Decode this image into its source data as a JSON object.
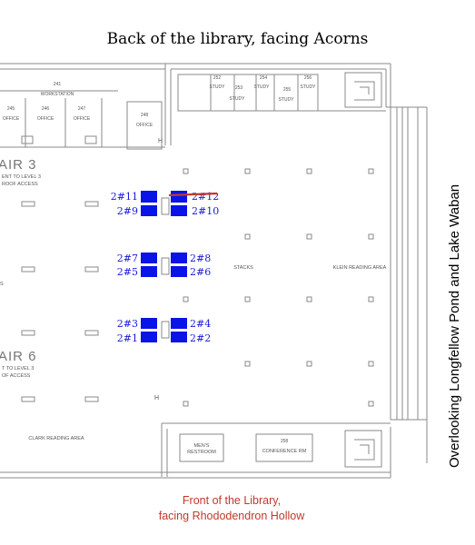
{
  "titles": {
    "top": "Back of the library, facing Acorns",
    "bottom_line1": "Front of the Library,",
    "bottom_line2": "facing Rhododendron Hollow",
    "side": "Overlooking Longfellow Pond and Lake Waban"
  },
  "rooms": {
    "workstation": "WORKSTATION",
    "workstation_num": "241",
    "office_245": "245",
    "office_246": "246",
    "office_247": "247",
    "office_248": "248",
    "office": "OFFICE",
    "study_252": "252",
    "study_253": "253",
    "study_254": "254",
    "study_255": "255",
    "study_256": "256",
    "study": "STUDY",
    "stair3": "AIR 3",
    "stair3_sub1": "ENT TO LEVEL 3",
    "stair3_sub2": "ROOF ACCESS",
    "stair6": "AIR 6",
    "stair6_sub1": "T TO LEVEL 3",
    "stair6_sub2": "OF ACCESS",
    "stacks": "STACKS",
    "klein": "KLEIN READING AREA",
    "clark": "CLARK READING AREA",
    "restroom1": "MEN'S",
    "restroom2": "RESTROOM",
    "conf_num": "258",
    "conference": "CONFERENCE RM",
    "h_marker": "H",
    "edge_s": "S"
  },
  "desks": [
    {
      "label": "2#11",
      "id": "desk-2-11",
      "marked": false
    },
    {
      "label": "2#12",
      "id": "desk-2-12",
      "marked": true
    },
    {
      "label": "2#9",
      "id": "desk-2-9",
      "marked": false
    },
    {
      "label": "2#10",
      "id": "desk-2-10",
      "marked": false
    },
    {
      "label": "2#7",
      "id": "desk-2-7",
      "marked": false
    },
    {
      "label": "2#8",
      "id": "desk-2-8",
      "marked": false
    },
    {
      "label": "2#5",
      "id": "desk-2-5",
      "marked": false
    },
    {
      "label": "2#6",
      "id": "desk-2-6",
      "marked": false
    },
    {
      "label": "2#3",
      "id": "desk-2-3",
      "marked": false
    },
    {
      "label": "2#4",
      "id": "desk-2-4",
      "marked": false
    },
    {
      "label": "2#1",
      "id": "desk-2-1",
      "marked": false
    },
    {
      "label": "2#2",
      "id": "desk-2-2",
      "marked": false
    }
  ],
  "colors": {
    "desk": "#0a14e6",
    "desk_label": "#1a1adb",
    "strike": "#c0392b",
    "walls": "#8a8a8a"
  }
}
